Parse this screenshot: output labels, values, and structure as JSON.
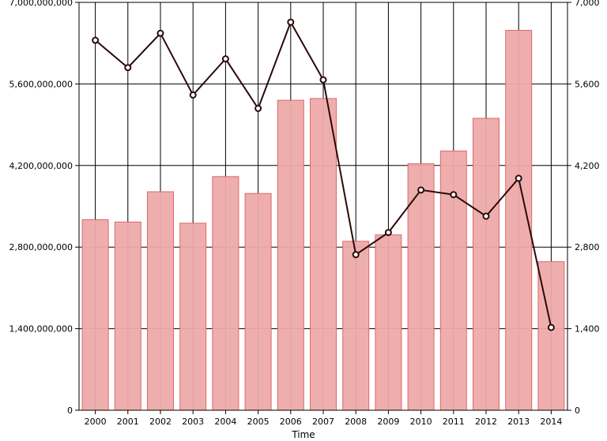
{
  "chart_data": {
    "type": "bar",
    "xlabel": "Time",
    "categories": [
      "2000",
      "2001",
      "2002",
      "2003",
      "2004",
      "2005",
      "2006",
      "2007",
      "2008",
      "2009",
      "2010",
      "2011",
      "2012",
      "2013",
      "2014"
    ],
    "series": [
      {
        "type": "bar",
        "axis": "left",
        "color": "#eeaaaa",
        "stroke": "#e06666",
        "values": [
          3270000000,
          3230000000,
          3750000000,
          3210000000,
          4010000000,
          3720000000,
          5320000000,
          5350000000,
          2900000000,
          3010000000,
          4230000000,
          4450000000,
          5010000000,
          6520000000,
          2550000000
        ]
      },
      {
        "type": "line",
        "axis": "right",
        "color": "#2a0a0a",
        "values": [
          6350,
          5880,
          6470,
          5410,
          6030,
          5180,
          6660,
          5670,
          2670,
          3050,
          3780,
          3700,
          3330,
          3980,
          1420
        ]
      }
    ],
    "ylim_left": [
      0,
      7000000000
    ],
    "ylim_right": [
      0,
      7000
    ],
    "yticks_left": [
      "0",
      "1,400,000,000",
      "2,800,000,000",
      "4,200,000,000",
      "5,600,000,000",
      "7,000,000,000"
    ],
    "yticks_right": [
      "0",
      "1,400",
      "2,800",
      "4,200",
      "5,600",
      "7,000"
    ],
    "grid": true
  }
}
